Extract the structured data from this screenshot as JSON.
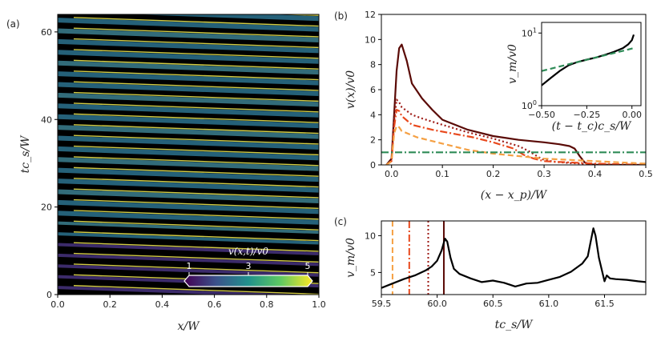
{
  "chart_data": [
    {
      "id": "a",
      "type": "heatmap",
      "panel_label": "(a)",
      "xlabel": "x/W",
      "ylabel": "tc_s/W",
      "xlim": [
        0,
        1
      ],
      "ylim": [
        0,
        64
      ],
      "xticks": [
        "0.0",
        "0.2",
        "0.4",
        "0.6",
        "0.8",
        "1.0"
      ],
      "yticks": [
        "0",
        "20",
        "40",
        "60"
      ],
      "colorbar": {
        "label": "v(x,t)/v0",
        "ticks": [
          "1",
          "3",
          "5"
        ],
        "range": [
          1,
          5
        ],
        "colormap": "viridis"
      },
      "background": "#000000"
    },
    {
      "id": "b",
      "type": "line",
      "panel_label": "(b)",
      "xlabel": "(x − x_p)/W",
      "ylabel": "v(x)/v0",
      "xlim": [
        -0.02,
        0.5
      ],
      "ylim": [
        0,
        12
      ],
      "xticks": [
        "0.0",
        "0.1",
        "0.2",
        "0.3",
        "0.4",
        "0.5"
      ],
      "yticks": [
        "0",
        "2",
        "4",
        "6",
        "8",
        "10",
        "12"
      ],
      "series": [
        {
          "color": "#5a0a06",
          "style": "solid",
          "x": [
            -0.01,
            0.0,
            0.005,
            0.01,
            0.015,
            0.02,
            0.03,
            0.04,
            0.06,
            0.08,
            0.1,
            0.15,
            0.2,
            0.25,
            0.3,
            0.33,
            0.35,
            0.36,
            0.37,
            0.38,
            0.39,
            0.4,
            0.45,
            0.5
          ],
          "y": [
            0,
            0.5,
            4,
            7.5,
            9.3,
            9.6,
            8.3,
            6.5,
            5.3,
            4.4,
            3.6,
            2.8,
            2.3,
            2.0,
            1.8,
            1.65,
            1.5,
            1.3,
            0.7,
            0.2,
            0.05,
            0.02,
            0,
            0
          ]
        },
        {
          "color": "#9e1b16",
          "style": "dotted",
          "x": [
            -0.01,
            0.0,
            0.005,
            0.01,
            0.015,
            0.02,
            0.04,
            0.06,
            0.1,
            0.15,
            0.2,
            0.25,
            0.27,
            0.29,
            0.3,
            0.32,
            0.35,
            0.4,
            0.45,
            0.5
          ],
          "y": [
            0,
            0.3,
            3.5,
            5.2,
            5.0,
            4.6,
            4.0,
            3.7,
            3.2,
            2.6,
            2.1,
            1.5,
            1.1,
            0.6,
            0.4,
            0.25,
            0.15,
            0.05,
            0,
            0
          ]
        },
        {
          "color": "#e8481c",
          "style": "dashdot",
          "x": [
            -0.01,
            0.0,
            0.005,
            0.01,
            0.015,
            0.02,
            0.04,
            0.08,
            0.12,
            0.16,
            0.2,
            0.24,
            0.26,
            0.28,
            0.3,
            0.35,
            0.4,
            0.45,
            0.5
          ],
          "y": [
            0,
            0.3,
            3.0,
            4.4,
            4.3,
            3.9,
            3.2,
            2.8,
            2.5,
            2.2,
            1.8,
            1.3,
            0.8,
            0.5,
            0.3,
            0.2,
            0.1,
            0.05,
            0
          ]
        },
        {
          "color": "#f5a043",
          "style": "dashed",
          "x": [
            -0.01,
            0.0,
            0.005,
            0.01,
            0.015,
            0.02,
            0.05,
            0.1,
            0.15,
            0.2,
            0.25,
            0.3,
            0.35,
            0.4,
            0.45,
            0.5
          ],
          "y": [
            0,
            0.3,
            2.5,
            3.1,
            3.0,
            2.7,
            2.2,
            1.7,
            1.2,
            0.9,
            0.7,
            0.5,
            0.4,
            0.3,
            0.2,
            0.1
          ]
        },
        {
          "color": "#2e8b57",
          "style": "dashdot",
          "x": [
            -0.02,
            0.5
          ],
          "y": [
            1,
            1
          ]
        }
      ]
    },
    {
      "id": "b-inset",
      "type": "line",
      "xlabel": "(t − t_c)c_s/W",
      "ylabel": "v_m/v0",
      "xlim": [
        -0.5,
        0.05
      ],
      "ylim": [
        1,
        14
      ],
      "log_y": true,
      "xticks": [
        "−0.50",
        "−0.25",
        "0.00"
      ],
      "yticks": [
        "10^0",
        "10^1"
      ],
      "series": [
        {
          "color": "#000000",
          "style": "solid",
          "x": [
            -0.5,
            -0.45,
            -0.4,
            -0.35,
            -0.3,
            -0.25,
            -0.2,
            -0.15,
            -0.1,
            -0.05,
            -0.02,
            0.0,
            0.01
          ],
          "y": [
            1.9,
            2.4,
            3.0,
            3.6,
            4.0,
            4.3,
            4.6,
            5.0,
            5.5,
            6.2,
            7.0,
            8.0,
            9.5
          ]
        },
        {
          "color": "#2e8b57",
          "style": "dashed",
          "x": [
            -0.5,
            -0.3,
            -0.1,
            0.01
          ],
          "y": [
            3.0,
            4.0,
            5.3,
            6.2
          ]
        }
      ]
    },
    {
      "id": "c",
      "type": "line",
      "panel_label": "(c)",
      "xlabel": "tc_s/W",
      "ylabel": "v_m/v0",
      "xlim": [
        59.5,
        61.87
      ],
      "ylim": [
        2,
        12
      ],
      "xticks": [
        "59.5",
        "60.0",
        "60.5",
        "61.0",
        "61.5"
      ],
      "yticks": [
        "5",
        "10"
      ],
      "vlines": [
        {
          "x": 59.6,
          "color": "#f5a043",
          "style": "dashed"
        },
        {
          "x": 59.75,
          "color": "#e8481c",
          "style": "dashdot"
        },
        {
          "x": 59.92,
          "color": "#9e1b16",
          "style": "dotted"
        },
        {
          "x": 60.06,
          "color": "#5a0a06",
          "style": "solid"
        }
      ],
      "series": [
        {
          "color": "#000000",
          "style": "solid",
          "x": [
            59.5,
            59.6,
            59.7,
            59.8,
            59.9,
            59.95,
            60.0,
            60.04,
            60.07,
            60.09,
            60.12,
            60.15,
            60.2,
            60.3,
            60.4,
            60.5,
            60.6,
            60.7,
            60.8,
            60.9,
            61.0,
            61.1,
            61.2,
            61.3,
            61.35,
            61.38,
            61.4,
            61.42,
            61.45,
            61.5,
            61.52,
            61.55,
            61.6,
            61.7,
            61.8,
            61.87
          ],
          "y": [
            2.9,
            3.5,
            4.1,
            4.6,
            5.3,
            5.8,
            6.6,
            8.0,
            9.6,
            9.2,
            7.0,
            5.5,
            4.8,
            4.2,
            3.7,
            3.9,
            3.6,
            3.1,
            3.5,
            3.6,
            4.0,
            4.4,
            5.1,
            6.2,
            7.2,
            9.5,
            11.0,
            10.0,
            7.0,
            3.8,
            4.6,
            4.2,
            4.1,
            4.0,
            3.8,
            3.7
          ]
        }
      ]
    }
  ]
}
